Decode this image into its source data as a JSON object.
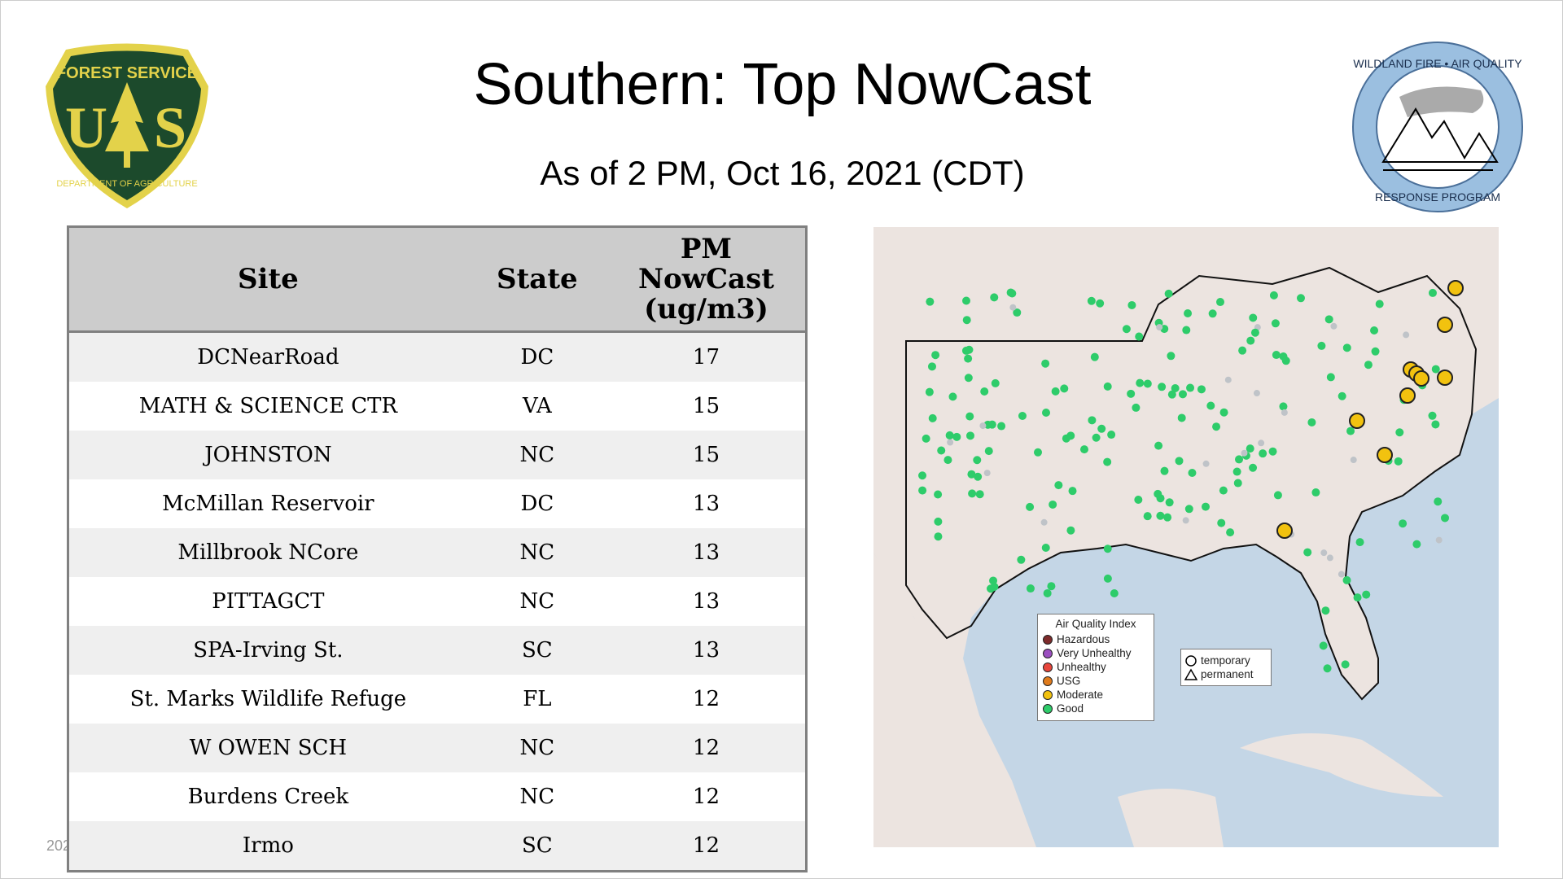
{
  "header": {
    "title": "Southern: Top NowCast",
    "subtitle": "As of  2 PM, Oct 16, 2021 (CDT)"
  },
  "logos": {
    "left": "FOREST SERVICE U S DEPARTMENT OF AGRICULTURE",
    "right": "WILDLAND FIRE • AIR QUALITY RESPONSE PROGRAM"
  },
  "table": {
    "headers": [
      "Site",
      "State",
      "PM NowCast (ug/m3)"
    ],
    "rows": [
      [
        "DCNearRoad",
        "DC",
        "17"
      ],
      [
        "MATH & SCIENCE CTR",
        "VA",
        "15"
      ],
      [
        "JOHNSTON",
        "NC",
        "15"
      ],
      [
        "McMillan Reservoir",
        "DC",
        "13"
      ],
      [
        "Millbrook NCore",
        "NC",
        "13"
      ],
      [
        "PITTAGCT",
        "NC",
        "13"
      ],
      [
        "SPA-Irving St.",
        "SC",
        "13"
      ],
      [
        "St. Marks Wildlife Refuge",
        "FL",
        "12"
      ],
      [
        "W OWEN SCH",
        "NC",
        "12"
      ],
      [
        "Burdens Creek",
        "NC",
        "12"
      ],
      [
        "Irmo",
        "SC",
        "12"
      ]
    ]
  },
  "legend": {
    "title": "Air Quality Index",
    "items": [
      {
        "label": "Hazardous",
        "color": "#7e2b2b"
      },
      {
        "label": "Very Unhealthy",
        "color": "#9b4fc0"
      },
      {
        "label": "Unhealthy",
        "color": "#e8463c"
      },
      {
        "label": "USG",
        "color": "#e07b1c"
      },
      {
        "label": "Moderate",
        "color": "#f2c20f"
      },
      {
        "label": "Good",
        "color": "#2ecc6a"
      }
    ],
    "shapes": [
      {
        "label": "temporary",
        "icon": "circle-icon"
      },
      {
        "label": "permanent",
        "icon": "triangle-icon"
      }
    ]
  }
}
